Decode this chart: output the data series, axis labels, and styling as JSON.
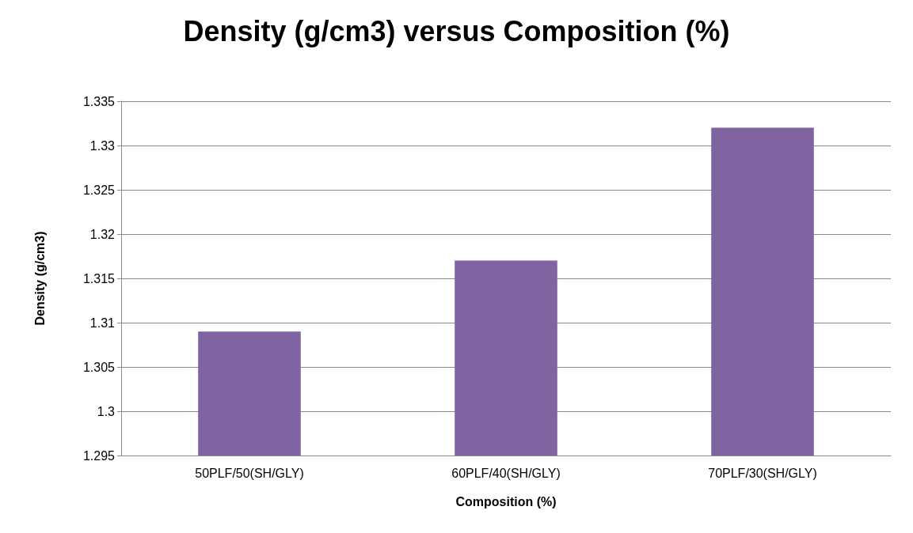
{
  "chart_data": {
    "type": "bar",
    "title": "Density (g/cm3) versus Composition (%)",
    "xlabel": "Composition (%)",
    "ylabel": "Density (g/cm3)",
    "categories": [
      "50PLF/50(SH/GLY)",
      "60PLF/40(SH/GLY)",
      "70PLF/30(SH/GLY)"
    ],
    "values": [
      1.309,
      1.317,
      1.332
    ],
    "color": "#8064a2",
    "ylim": [
      1.295,
      1.335
    ],
    "yticks": [
      1.295,
      1.3,
      1.305,
      1.31,
      1.315,
      1.32,
      1.325,
      1.33,
      1.335
    ],
    "grid": "y"
  }
}
